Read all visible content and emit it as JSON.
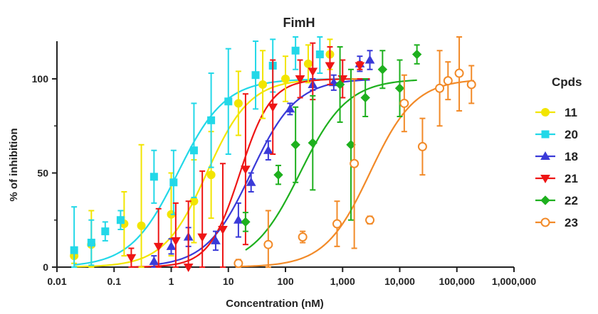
{
  "chart_data": {
    "type": "scatter",
    "title": "FimH",
    "xlabel": "Concentration (nM)",
    "ylabel": "% of inhibition",
    "xscale": "log",
    "xlim": [
      0.01,
      1000000
    ],
    "ylim": [
      0,
      120
    ],
    "x_ticks": [
      {
        "value": 0.01,
        "label": "0.01"
      },
      {
        "value": 0.1,
        "label": "0.1"
      },
      {
        "value": 1,
        "label": "1"
      },
      {
        "value": 10,
        "label": "10"
      },
      {
        "value": 100,
        "label": "100"
      },
      {
        "value": 1000,
        "label": "1,000"
      },
      {
        "value": 10000,
        "label": "10,000"
      },
      {
        "value": 100000,
        "label": "100,000"
      },
      {
        "value": 1000000,
        "label": "1,000,000"
      }
    ],
    "y_ticks": [
      {
        "value": 0,
        "label": "0"
      },
      {
        "value": 50,
        "label": "50"
      },
      {
        "value": 100,
        "label": "100"
      }
    ],
    "legend_title": "Cpds",
    "legend_position": "right",
    "grid": false,
    "series": [
      {
        "name": "11",
        "color": "#f2e500",
        "marker": "circle",
        "filled": true,
        "ic50": 4.2,
        "hill": 1.15,
        "fit_range": [
          0.02,
          1000
        ],
        "points": [
          [
            0.02,
            6,
            4
          ],
          [
            0.04,
            12,
            18
          ],
          [
            0.15,
            23,
            17
          ],
          [
            0.3,
            22,
            43
          ],
          [
            1,
            28,
            22
          ],
          [
            2.5,
            35,
            22
          ],
          [
            5,
            49,
            23
          ],
          [
            15,
            87,
            17
          ],
          [
            40,
            97,
            18
          ],
          [
            100,
            100,
            12
          ],
          [
            250,
            108,
            10
          ],
          [
            600,
            113,
            8
          ]
        ]
      },
      {
        "name": "20",
        "color": "#22d8e8",
        "marker": "square",
        "filled": true,
        "ic50": 1.3,
        "hill": 1.05,
        "fit_range": [
          0.02,
          1000
        ],
        "points": [
          [
            0.02,
            9,
            23
          ],
          [
            0.04,
            13,
            12
          ],
          [
            0.07,
            19,
            5
          ],
          [
            0.13,
            25,
            5
          ],
          [
            0.5,
            48,
            14
          ],
          [
            1.1,
            45,
            17
          ],
          [
            2.5,
            62,
            25
          ],
          [
            5,
            78,
            25
          ],
          [
            10,
            88,
            28
          ],
          [
            30,
            102,
            18
          ],
          [
            60,
            107,
            14
          ],
          [
            150,
            115,
            10
          ],
          [
            400,
            113,
            10
          ]
        ]
      },
      {
        "name": "18",
        "color": "#3a3ad8",
        "marker": "triangle-up",
        "filled": true,
        "ic50": 25,
        "hill": 1.1,
        "fit_range": [
          0.5,
          3000
        ],
        "points": [
          [
            0.5,
            3,
            3
          ],
          [
            1,
            11,
            4
          ],
          [
            2,
            16,
            5
          ],
          [
            6,
            14,
            5
          ],
          [
            15,
            25,
            9
          ],
          [
            25,
            45,
            5
          ],
          [
            50,
            62,
            5
          ],
          [
            120,
            84,
            3
          ],
          [
            300,
            97,
            3
          ],
          [
            700,
            98,
            4
          ],
          [
            2000,
            108,
            4
          ],
          [
            3000,
            110,
            5
          ]
        ]
      },
      {
        "name": "21",
        "color": "#ee1515",
        "marker": "triangle-down",
        "filled": true,
        "ic50": 16,
        "hill": 1.6,
        "fit_range": [
          0.2,
          3000
        ],
        "points": [
          [
            0.2,
            5,
            5
          ],
          [
            0.6,
            11,
            20
          ],
          [
            1.2,
            14,
            20
          ],
          [
            2,
            0,
            35
          ],
          [
            3.5,
            16,
            35
          ],
          [
            8,
            20,
            35
          ],
          [
            20,
            52,
            40
          ],
          [
            60,
            85,
            25
          ],
          [
            180,
            100,
            10
          ],
          [
            300,
            104,
            15
          ],
          [
            600,
            107,
            10
          ],
          [
            1000,
            100,
            10
          ],
          [
            2000,
            107,
            2
          ]
        ]
      },
      {
        "name": "22",
        "color": "#1eb01e",
        "marker": "diamond",
        "filled": true,
        "ic50": 180,
        "hill": 1.05,
        "fit_range": [
          20,
          20000
        ],
        "points": [
          [
            20,
            24,
            5
          ],
          [
            75,
            49,
            5
          ],
          [
            150,
            65,
            20
          ],
          [
            300,
            66,
            25
          ],
          [
            900,
            97,
            20
          ],
          [
            1400,
            65,
            40
          ],
          [
            2500,
            90,
            10
          ],
          [
            5000,
            105,
            10
          ],
          [
            10000,
            95,
            15
          ],
          [
            20000,
            113,
            5
          ]
        ]
      },
      {
        "name": "23",
        "color": "#f28a28",
        "marker": "circle",
        "filled": false,
        "ic50": 3000,
        "hill": 1.1,
        "fit_range": [
          15,
          200000
        ],
        "points": [
          [
            15,
            2,
            2
          ],
          [
            50,
            12,
            18
          ],
          [
            200,
            16,
            3
          ],
          [
            800,
            23,
            12
          ],
          [
            1600,
            55,
            45
          ],
          [
            3000,
            25,
            2
          ],
          [
            12000,
            87,
            15
          ],
          [
            25000,
            64,
            15
          ],
          [
            50000,
            95,
            20
          ],
          [
            70000,
            99,
            10
          ],
          [
            110000,
            103,
            20
          ],
          [
            180000,
            97,
            10
          ]
        ]
      }
    ]
  }
}
